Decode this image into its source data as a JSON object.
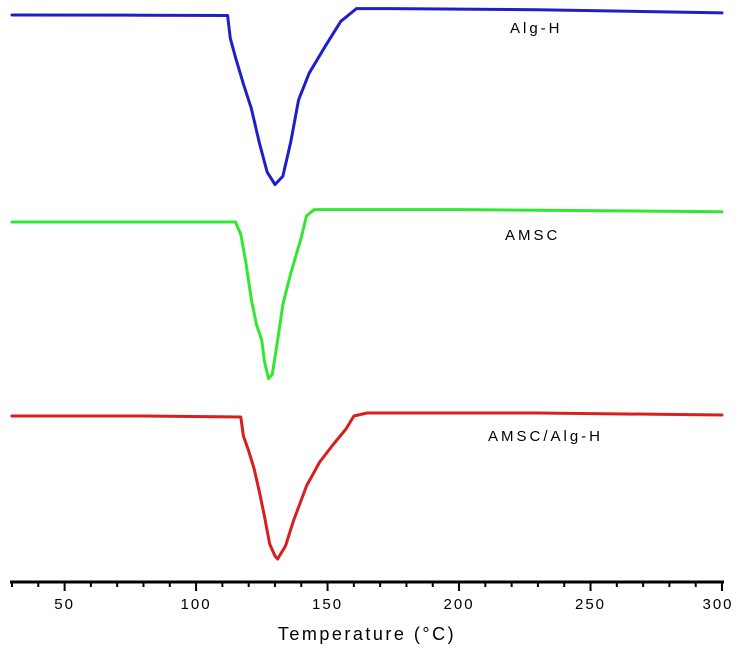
{
  "chart_data": {
    "type": "line",
    "title": "",
    "xlabel": "Temperature (°C)",
    "ylabel": "",
    "xlim": [
      30,
      300
    ],
    "xticks": [
      50,
      100,
      150,
      200,
      250,
      300
    ],
    "yaxis_shown": false,
    "grid": false,
    "legend": "none",
    "series": [
      {
        "name": "Alg-H",
        "color": "#1f1fc8",
        "points": [
          [
            30,
            0.0
          ],
          [
            80,
            -0.02
          ],
          [
            112,
            -0.05
          ],
          [
            113,
            -2.2
          ],
          [
            115,
            -4.0
          ],
          [
            118,
            -6.5
          ],
          [
            121,
            -8.8
          ],
          [
            124,
            -12.0
          ],
          [
            127,
            -14.8
          ],
          [
            130,
            -16.0
          ],
          [
            133,
            -15.2
          ],
          [
            136,
            -12.0
          ],
          [
            139,
            -8.0
          ],
          [
            143,
            -5.5
          ],
          [
            149,
            -3.0
          ],
          [
            155,
            -0.6
          ],
          [
            158,
            0.0
          ],
          [
            161,
            0.6
          ],
          [
            175,
            0.6
          ],
          [
            230,
            0.5
          ],
          [
            300,
            0.2
          ]
        ]
      },
      {
        "name": "AMSC",
        "color": "#33e633",
        "points": [
          [
            30,
            0.0
          ],
          [
            60,
            0.0
          ],
          [
            115,
            0.0
          ],
          [
            117,
            -1.2
          ],
          [
            119,
            -4.0
          ],
          [
            121,
            -7.5
          ],
          [
            123,
            -10.0
          ],
          [
            125,
            -11.5
          ],
          [
            126,
            -13.5
          ],
          [
            127.5,
            -15.2
          ],
          [
            129,
            -14.8
          ],
          [
            131,
            -11.5
          ],
          [
            133,
            -8.0
          ],
          [
            136,
            -5.0
          ],
          [
            140,
            -1.5
          ],
          [
            142,
            0.6
          ],
          [
            145,
            1.2
          ],
          [
            200,
            1.2
          ],
          [
            300,
            1.0
          ]
        ]
      },
      {
        "name": "AMSC/Alg-H",
        "color": "#d81f1f",
        "points": [
          [
            30,
            0.0
          ],
          [
            80,
            0.0
          ],
          [
            117,
            -0.1
          ],
          [
            118,
            -2.0
          ],
          [
            120,
            -3.5
          ],
          [
            122,
            -5.2
          ],
          [
            124,
            -7.5
          ],
          [
            126,
            -10.0
          ],
          [
            128,
            -12.8
          ],
          [
            130,
            -14.0
          ],
          [
            131,
            -14.3
          ],
          [
            134,
            -13.0
          ],
          [
            137,
            -10.5
          ],
          [
            142,
            -7.0
          ],
          [
            147,
            -4.6
          ],
          [
            152,
            -2.9
          ],
          [
            157,
            -1.3
          ],
          [
            160,
            0.0
          ],
          [
            165,
            0.3
          ],
          [
            230,
            0.3
          ],
          [
            300,
            0.1
          ]
        ]
      }
    ]
  }
}
